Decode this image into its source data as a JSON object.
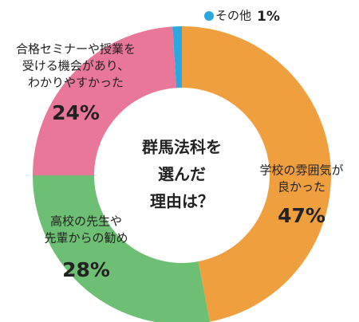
{
  "chart_data": {
    "type": "donut",
    "title": [
      "群馬法科を",
      "選んだ",
      "理由は？"
    ],
    "categories": [
      [
        "学校の雰囲気が",
        "良かった"
      ],
      [
        "高校の先生や",
        "先輩からの勧め"
      ],
      [
        "合格セミナーや授業を",
        "受ける機会があり、",
        "わかりやすかった"
      ],
      [
        "その他"
      ]
    ],
    "values": [
      47,
      28,
      24,
      1
    ],
    "value_labels": [
      "47%",
      "28%",
      "24%",
      "1%"
    ],
    "colors": [
      "#f09f3e",
      "#6dbf73",
      "#e8779a",
      "#2ba7e1"
    ]
  }
}
